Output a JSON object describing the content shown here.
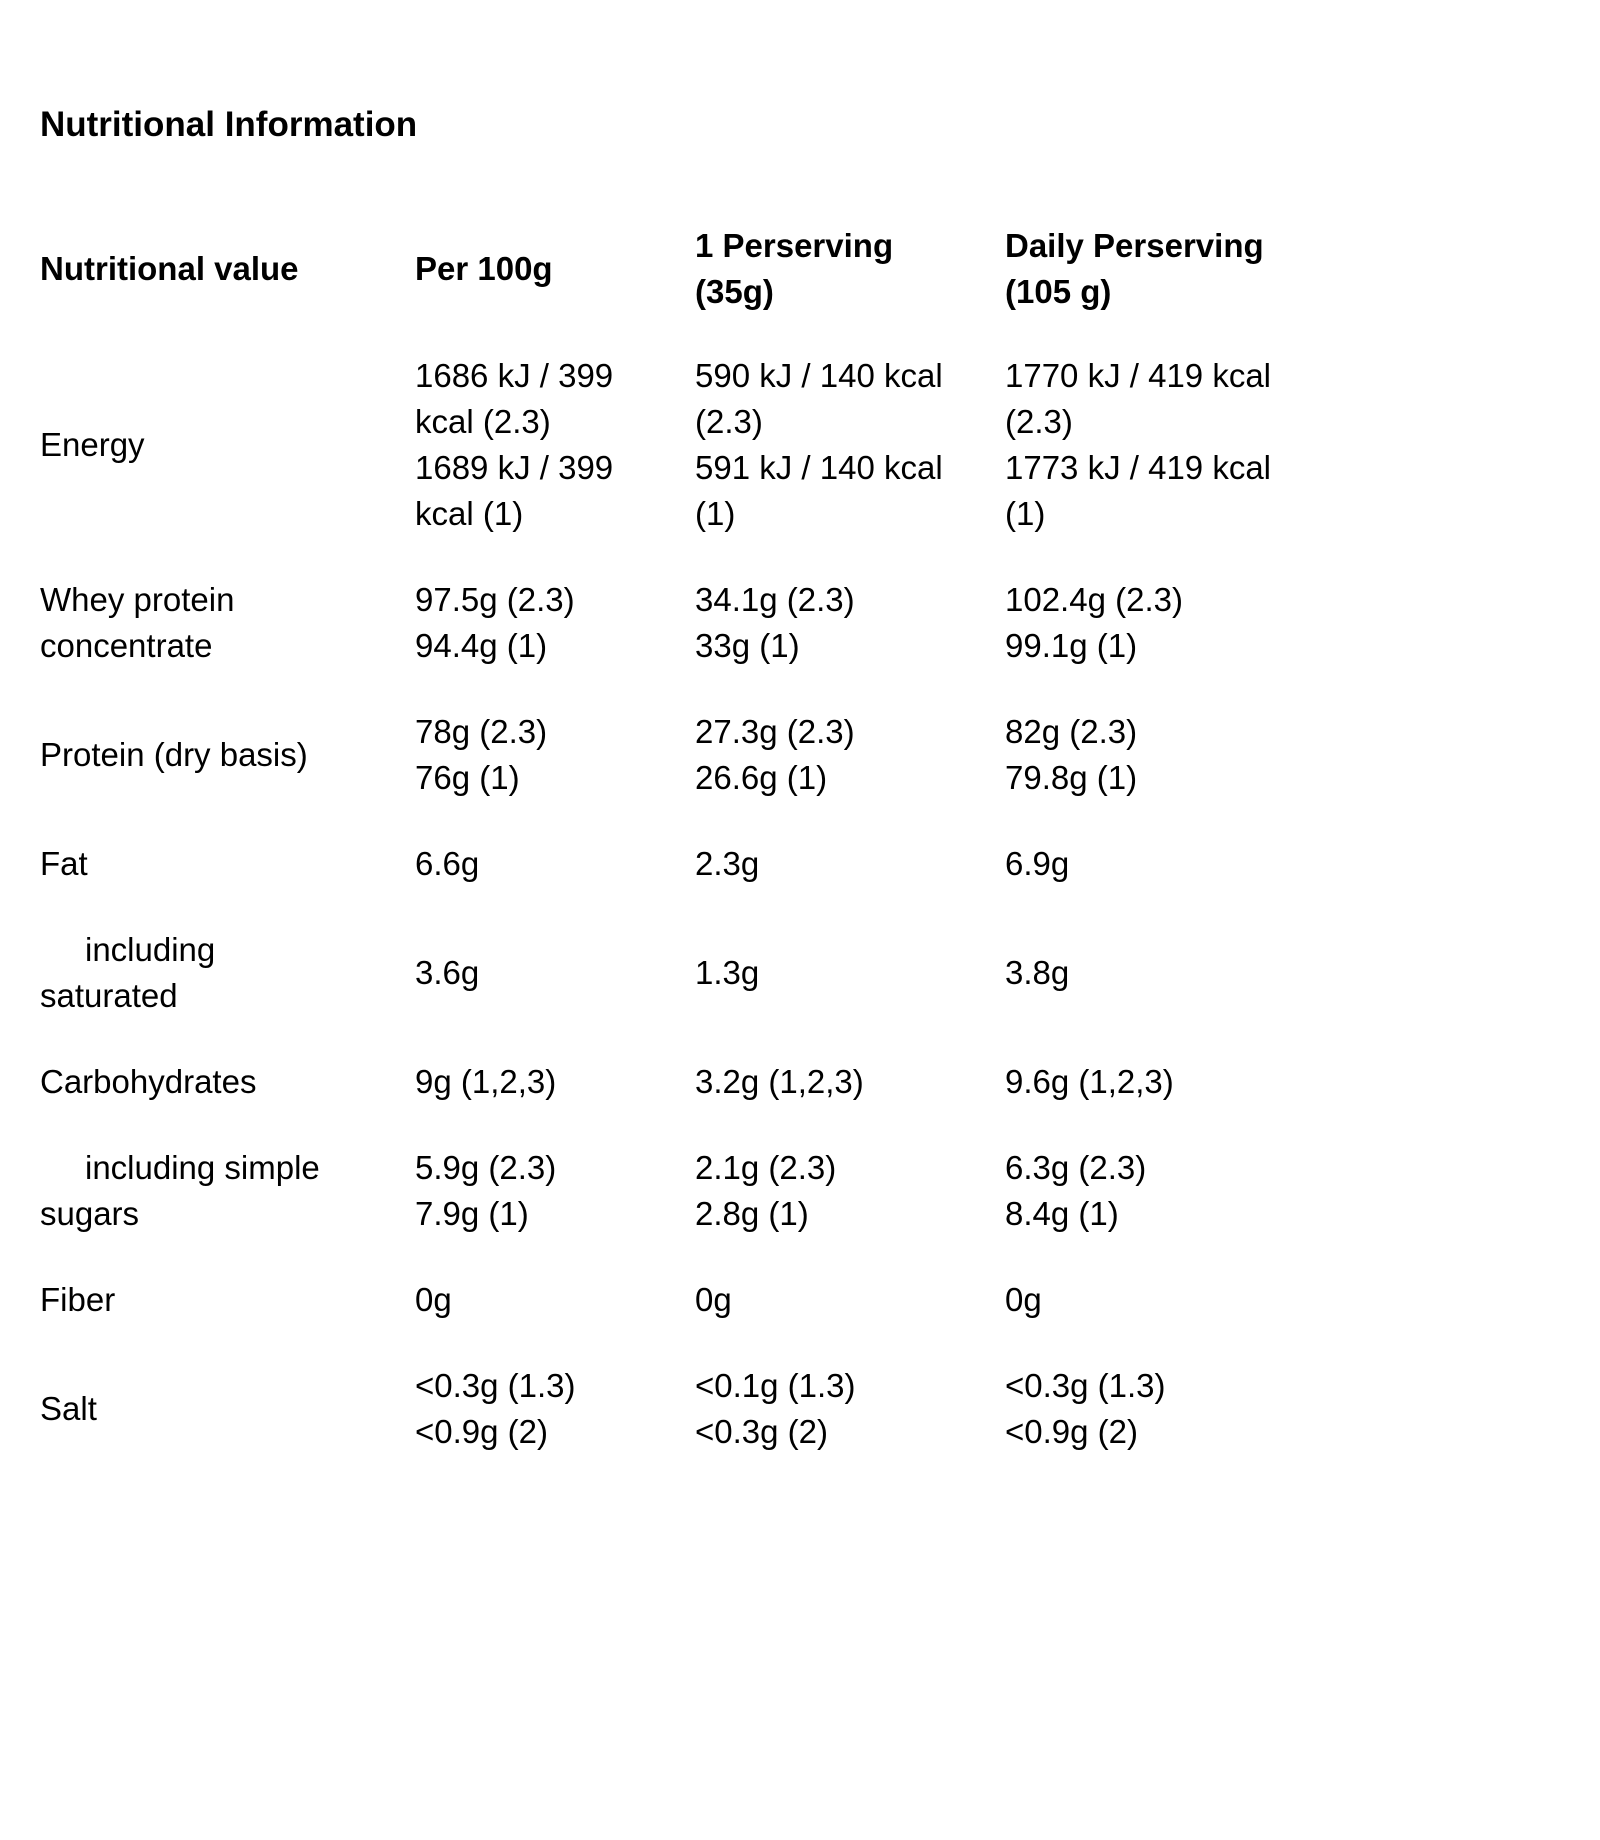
{
  "title": "Nutritional Information",
  "table": {
    "headers": {
      "col_label": "Nutritional value",
      "col_per_100g": "Per 100g",
      "col_per_serving": "1 Perserving\n(35g)",
      "col_daily": "Daily Perserving\n(105 g)"
    },
    "rows": [
      {
        "label": "Energy",
        "per_100g": "1686 kJ / 399\nkcal (2.3)\n1689 kJ / 399\nkcal (1)",
        "per_serving": "590 kJ / 140 kcal\n(2.3)\n591 kJ / 140 kcal\n(1)",
        "daily": "1770 kJ / 419 kcal\n(2.3)\n1773 kJ / 419 kcal\n(1)"
      },
      {
        "label": "Whey protein\nconcentrate",
        "per_100g": "97.5g (2.3)\n94.4g (1)",
        "per_serving": "34.1g (2.3)\n33g (1)",
        "daily": "102.4g (2.3)\n99.1g (1)"
      },
      {
        "label": "Protein (dry basis)",
        "per_100g": "78g (2.3)\n76g (1)",
        "per_serving": "27.3g (2.3)\n26.6g (1)",
        "daily": "82g (2.3)\n79.8g (1)"
      },
      {
        "label": "Fat",
        "per_100g": "6.6g",
        "per_serving": "2.3g",
        "daily": "6.9g"
      },
      {
        "label": "including\nsaturated",
        "per_100g": "3.6g",
        "per_serving": "1.3g",
        "daily": "3.8g"
      },
      {
        "label": "Carbohydrates",
        "per_100g": "9g (1,2,3)",
        "per_serving": "3.2g (1,2,3)",
        "daily": "9.6g (1,2,3)"
      },
      {
        "label": "including simple\nsugars",
        "per_100g": "5.9g (2.3)\n7.9g (1)",
        "per_serving": "2.1g (2.3)\n2.8g (1)",
        "daily": "6.3g (2.3)\n8.4g (1)"
      },
      {
        "label": "Fiber",
        "per_100g": "0g",
        "per_serving": "0g",
        "daily": "0g"
      },
      {
        "label": "Salt",
        "per_100g": "<0.3g (1.3)\n<0.9g (2)",
        "per_serving": "<0.1g (1.3)\n<0.3g (2)",
        "daily": "<0.3g (1.3)\n<0.9g (2)"
      }
    ]
  }
}
